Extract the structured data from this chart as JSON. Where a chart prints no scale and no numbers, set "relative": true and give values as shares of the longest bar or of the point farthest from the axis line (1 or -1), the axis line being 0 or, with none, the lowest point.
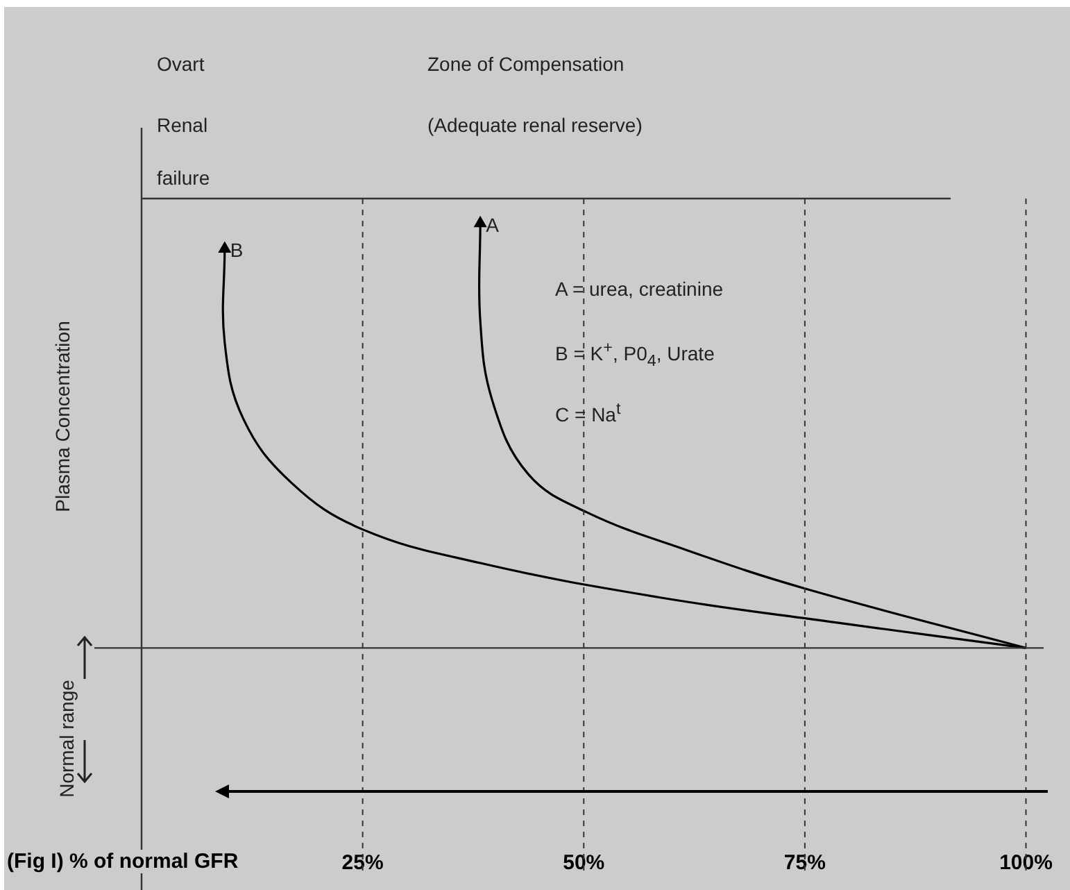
{
  "chart_data": {
    "type": "line",
    "relative": true,
    "ylabel": "Plasma Concentration",
    "xlabel": "(Fig I) % of normal GFR",
    "xlim": [
      0,
      102
    ],
    "xticks": [
      {
        "value": 25,
        "label": "25%"
      },
      {
        "value": 50,
        "label": "50%"
      },
      {
        "value": 75,
        "label": "75%"
      },
      {
        "value": 100,
        "label": "100%"
      }
    ],
    "grid": false,
    "legend": false,
    "marker": "none",
    "line_style": "solid",
    "series": [
      {
        "color": "#000000",
        "x": [
          38.3,
          38.3,
          39.7,
          43.7,
          50.3,
          61.7,
          75,
          100
        ],
        "values": [
          1,
          0.77,
          0.58,
          0.41,
          0.32,
          0.23,
          0.14,
          0
        ]
      },
      {
        "color": "#000000",
        "x": [
          9.4,
          9.4,
          11.5,
          16.9,
          24.9,
          38.3,
          58.3,
          78.5,
          100
        ],
        "values": [
          0.94,
          0.72,
          0.54,
          0.39,
          0.28,
          0.2,
          0.12,
          0.06,
          0
        ]
      }
    ],
    "ref_lines": [
      {
        "axis": "x",
        "value": 25,
        "line_style": "dashed"
      },
      {
        "axis": "x",
        "value": 50,
        "line_style": "dashed"
      },
      {
        "axis": "x",
        "value": 75,
        "line_style": "dashed"
      },
      {
        "axis": "x",
        "value": 100,
        "line_style": "dashed"
      }
    ],
    "annotations": [
      {
        "text": "A",
        "x": 38.3,
        "y": 1
      },
      {
        "text": "B",
        "x": 9.4,
        "y": 0.94
      },
      "Ovart",
      "Renal",
      "failure",
      "Zone of  Compensation",
      "(Adequate renal reserve)",
      "A  =  urea, creatinine",
      "B  = K$^{+}$, P0$_{4}$, Urate",
      "C  = Na$^{t}$",
      "Normal range"
    ]
  }
}
